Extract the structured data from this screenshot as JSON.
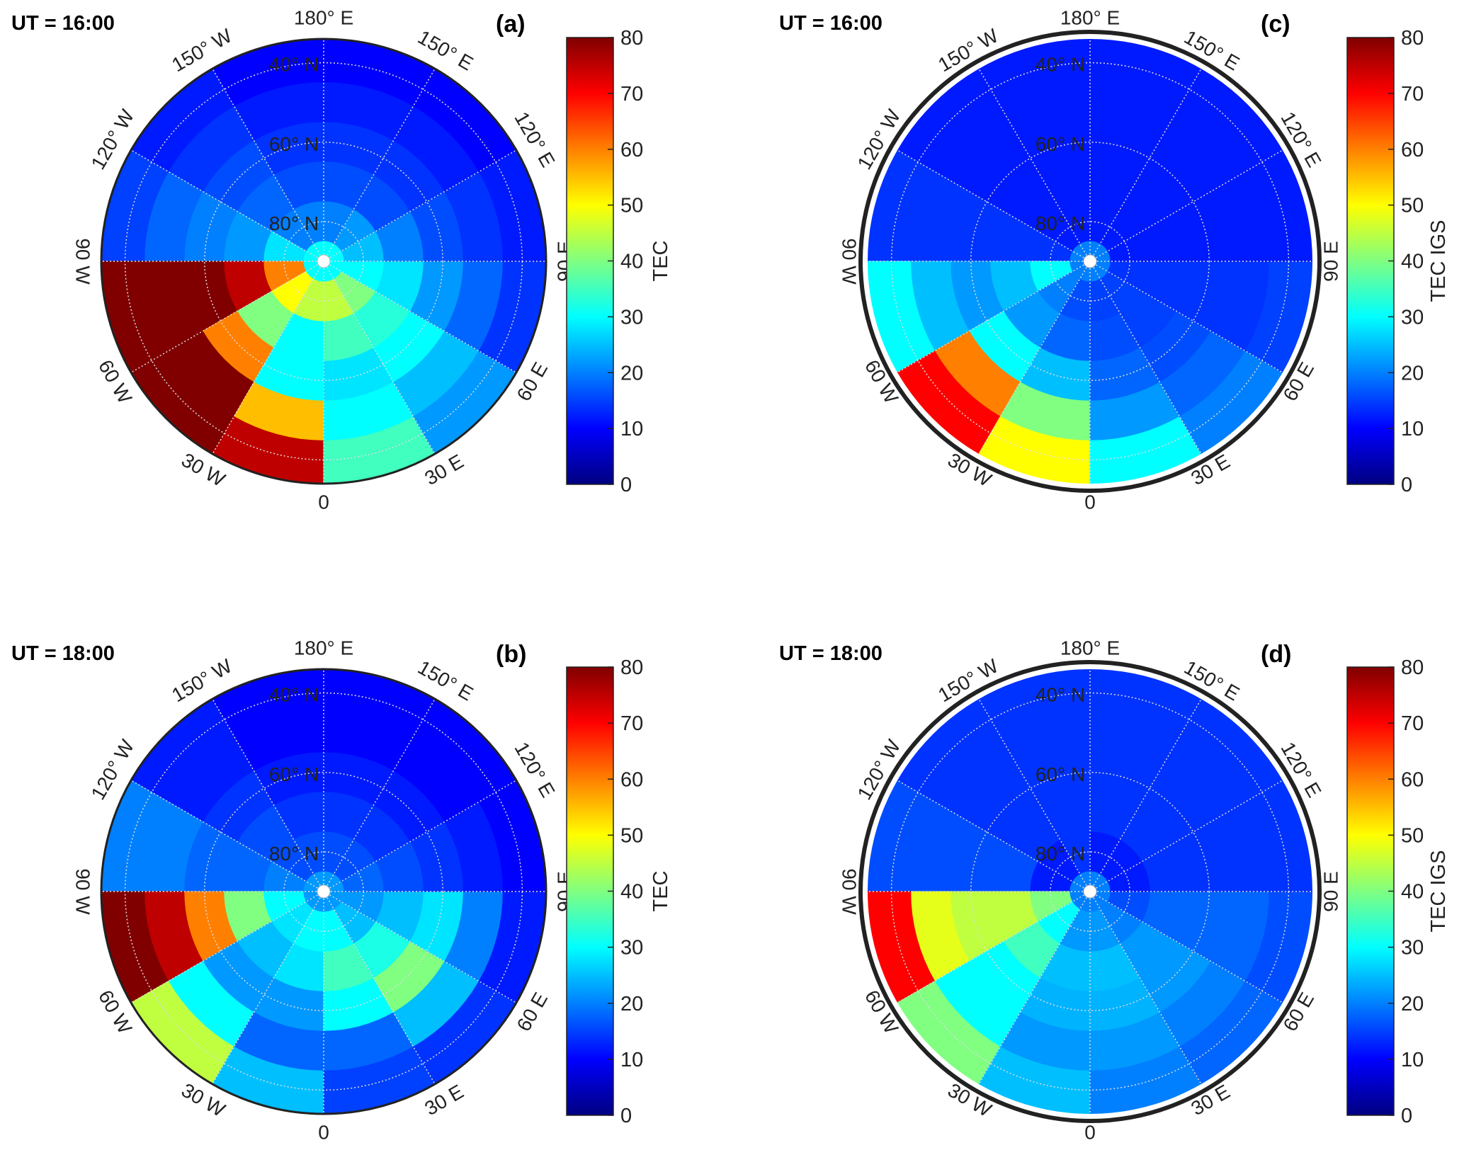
{
  "chart_data": [
    {
      "type": "heatmap",
      "projection": "polar-north",
      "panel_label": "(a)",
      "title": "UT = 16:00",
      "colorbar_label": "TEC",
      "clim": [
        0,
        80
      ],
      "colorbar_ticks": [
        0,
        10,
        20,
        30,
        40,
        50,
        60,
        70,
        80
      ],
      "lon_edges": [
        -180,
        -150,
        -120,
        -90,
        -60,
        -30,
        0,
        30,
        60,
        90,
        120,
        150,
        180
      ],
      "lat_bands": [
        [
          35,
          45
        ],
        [
          45,
          55
        ],
        [
          55,
          65
        ],
        [
          65,
          75
        ],
        [
          75,
          85
        ],
        [
          85,
          90
        ]
      ],
      "values": [
        [
          10,
          12,
          15,
          80,
          80,
          75,
          35,
          22,
          14,
          12,
          10,
          10
        ],
        [
          12,
          14,
          18,
          80,
          80,
          55,
          30,
          25,
          18,
          14,
          12,
          12
        ],
        [
          14,
          16,
          20,
          80,
          60,
          30,
          28,
          30,
          22,
          16,
          14,
          14
        ],
        [
          16,
          18,
          22,
          75,
          40,
          30,
          35,
          33,
          28,
          20,
          16,
          16
        ],
        [
          20,
          20,
          28,
          60,
          50,
          45,
          45,
          40,
          30,
          25,
          22,
          20
        ],
        [
          30,
          30,
          30,
          30,
          30,
          30,
          30,
          30,
          30,
          30,
          30,
          30
        ]
      ]
    },
    {
      "type": "heatmap",
      "projection": "polar-north",
      "panel_label": "(b)",
      "title": "UT = 18:00",
      "colorbar_label": "TEC",
      "clim": [
        0,
        80
      ],
      "colorbar_ticks": [
        0,
        10,
        20,
        30,
        40,
        50,
        60,
        70,
        80
      ],
      "lon_edges": [
        -180,
        -150,
        -120,
        -90,
        -60,
        -30,
        0,
        30,
        60,
        90,
        120,
        150,
        180
      ],
      "lat_bands": [
        [
          35,
          45
        ],
        [
          45,
          55
        ],
        [
          55,
          65
        ],
        [
          65,
          75
        ],
        [
          75,
          85
        ],
        [
          85,
          90
        ]
      ],
      "values": [
        [
          10,
          12,
          20,
          80,
          45,
          25,
          15,
          14,
          12,
          10,
          10,
          10
        ],
        [
          10,
          12,
          20,
          75,
          30,
          18,
          18,
          25,
          20,
          12,
          10,
          10
        ],
        [
          12,
          14,
          18,
          60,
          22,
          22,
          30,
          40,
          28,
          14,
          12,
          12
        ],
        [
          14,
          16,
          18,
          40,
          25,
          28,
          35,
          32,
          25,
          16,
          14,
          14
        ],
        [
          16,
          16,
          20,
          30,
          28,
          30,
          30,
          25,
          22,
          18,
          16,
          16
        ],
        [
          22,
          22,
          22,
          22,
          22,
          22,
          22,
          22,
          22,
          22,
          22,
          22
        ]
      ]
    },
    {
      "type": "heatmap",
      "projection": "polar-north",
      "panel_label": "(c)",
      "title": "UT = 16:00",
      "colorbar_label": "TEC IGS",
      "clim": [
        0,
        80
      ],
      "colorbar_ticks": [
        0,
        10,
        20,
        30,
        40,
        50,
        60,
        70,
        80
      ],
      "lon_edges": [
        -180,
        -150,
        -120,
        -90,
        -60,
        -30,
        0,
        30,
        60,
        90,
        120,
        150,
        180
      ],
      "lat_bands": [
        [
          35,
          45
        ],
        [
          45,
          55
        ],
        [
          55,
          65
        ],
        [
          65,
          75
        ],
        [
          75,
          85
        ],
        [
          85,
          90
        ]
      ],
      "values": [
        [
          12,
          12,
          14,
          30,
          70,
          50,
          30,
          20,
          15,
          12,
          12,
          12
        ],
        [
          12,
          12,
          14,
          25,
          60,
          40,
          22,
          18,
          14,
          12,
          12,
          12
        ],
        [
          12,
          12,
          14,
          22,
          30,
          25,
          18,
          16,
          14,
          12,
          12,
          12
        ],
        [
          12,
          12,
          14,
          25,
          22,
          18,
          16,
          15,
          14,
          12,
          12,
          12
        ],
        [
          12,
          12,
          14,
          30,
          20,
          16,
          15,
          15,
          14,
          12,
          12,
          12
        ],
        [
          20,
          20,
          20,
          20,
          20,
          20,
          20,
          20,
          20,
          20,
          20,
          20
        ]
      ]
    },
    {
      "type": "heatmap",
      "projection": "polar-north",
      "panel_label": "(d)",
      "title": "UT = 18:00",
      "colorbar_label": "TEC IGS",
      "clim": [
        0,
        80
      ],
      "colorbar_ticks": [
        0,
        10,
        20,
        30,
        40,
        50,
        60,
        70,
        80
      ],
      "lon_edges": [
        -180,
        -150,
        -120,
        -90,
        -60,
        -30,
        0,
        30,
        60,
        90,
        120,
        150,
        180
      ],
      "lat_bands": [
        [
          35,
          45
        ],
        [
          45,
          55
        ],
        [
          55,
          65
        ],
        [
          65,
          75
        ],
        [
          75,
          85
        ],
        [
          85,
          90
        ]
      ],
      "values": [
        [
          14,
          14,
          16,
          70,
          40,
          25,
          20,
          18,
          16,
          14,
          14,
          14
        ],
        [
          14,
          14,
          16,
          48,
          30,
          22,
          22,
          20,
          18,
          14,
          14,
          14
        ],
        [
          14,
          14,
          16,
          45,
          30,
          24,
          24,
          22,
          18,
          14,
          14,
          14
        ],
        [
          14,
          14,
          16,
          45,
          35,
          25,
          25,
          22,
          18,
          14,
          14,
          14
        ],
        [
          14,
          12,
          12,
          40,
          30,
          22,
          22,
          20,
          16,
          12,
          12,
          12
        ],
        [
          20,
          20,
          20,
          20,
          20,
          20,
          20,
          20,
          20,
          20,
          20,
          20
        ]
      ]
    }
  ],
  "axes": {
    "lon_labels": [
      {
        "lon": 0,
        "text": "0"
      },
      {
        "lon": 30,
        "text": "30 E"
      },
      {
        "lon": 60,
        "text": "60 E"
      },
      {
        "lon": 90,
        "text": "90 E"
      },
      {
        "lon": 120,
        "text": "120° E"
      },
      {
        "lon": 150,
        "text": "150° E"
      },
      {
        "lon": 180,
        "text": "180° E"
      },
      {
        "lon": -150,
        "text": "150° W"
      },
      {
        "lon": -120,
        "text": "120° W"
      },
      {
        "lon": -90,
        "text": "90 W"
      },
      {
        "lon": -60,
        "text": "60 W"
      },
      {
        "lon": -30,
        "text": "30 W"
      }
    ],
    "lat_labels": [
      {
        "lat": 40,
        "text": "40° N"
      },
      {
        "lat": 60,
        "text": "60° N"
      },
      {
        "lat": 80,
        "text": "80° N"
      }
    ]
  }
}
